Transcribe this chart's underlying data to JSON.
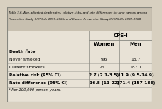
{
  "title_lines": [
    "Table 3.6. Age-adjusted death rates, relative risks, and rate differences for lung cancer, among",
    "Prevention Study I (CPS-I), 1959-1965, and Cancer Prevention Study II (CPS-II), 1982-1988"
  ],
  "header_group": "CPS-I",
  "col_headers": [
    "Women",
    "Men"
  ],
  "rows": [
    {
      "label": "Death rate",
      "label_super": "*",
      "vals": [
        "",
        ""
      ],
      "bold": true
    },
    {
      "label": "Never smoked",
      "label_super": "",
      "vals": [
        "9.6",
        "15.7"
      ],
      "bold": false
    },
    {
      "label": "Current smokers",
      "label_super": "",
      "vals": [
        "26.1",
        "187.1"
      ],
      "bold": false
    },
    {
      "label": "Relative risk (95% CI)",
      "label_super": "**",
      "vals": [
        "2.7 (2.1-3.5)",
        "11.9 (9.5-14.9)"
      ],
      "bold": true
    },
    {
      "label": "Rate difference (95% CI)",
      "label_super": "",
      "vals": [
        "16.5 (11-22)",
        "171.4 (157-186)"
      ],
      "bold": true
    }
  ],
  "footnote": "* Per 100,000 person-years.",
  "bg_color": "#d8d0c0",
  "title_bg": "#c8c0b0",
  "table_bg": "#e8e2d6",
  "border_color": "#888880",
  "title_fontsize": 3.0,
  "header_fontsize": 5.0,
  "data_fontsize": 4.3,
  "footnote_fontsize": 3.8
}
